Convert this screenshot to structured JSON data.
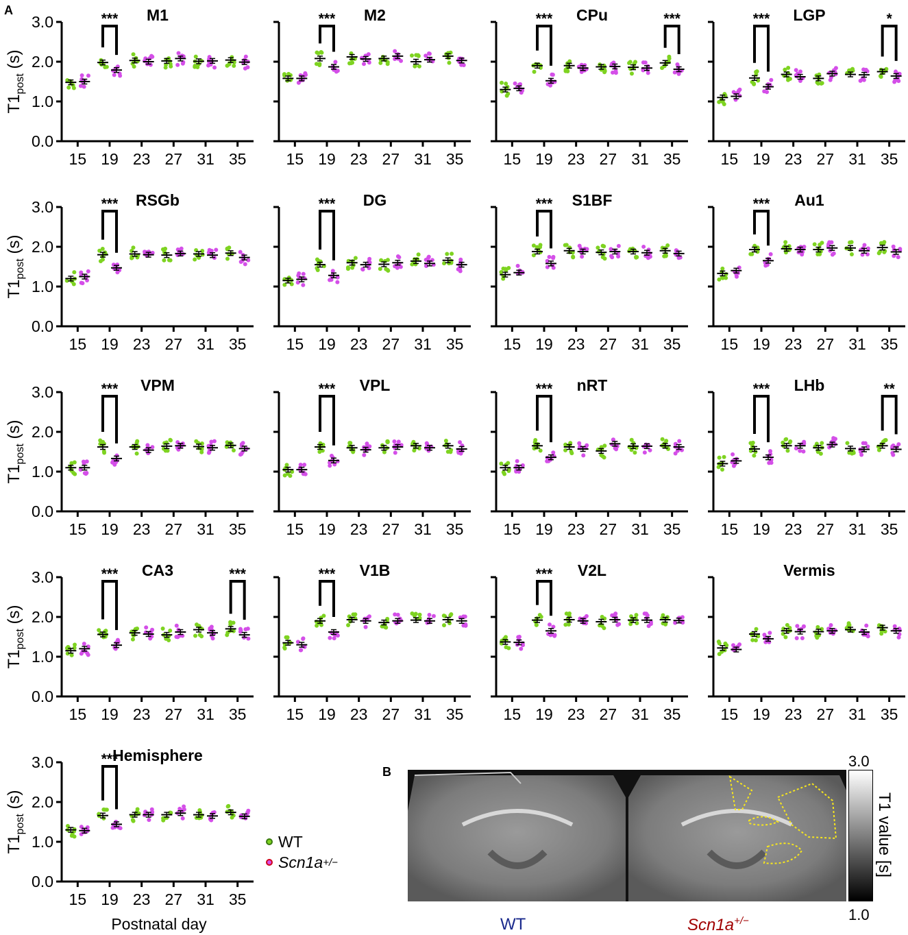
{
  "figure": {
    "panel_a_label": "A",
    "panel_b_label": "B",
    "y_axis_label": "T1",
    "y_axis_label_sub": "post",
    "y_axis_label_unit": " (s)",
    "x_axis_label": "Postnatal day",
    "colors": {
      "wt": "#7ed321",
      "mutant": "#d44fe8",
      "mutant_legend_edge": "#d0021b",
      "bar": "#000000"
    }
  },
  "legend": {
    "wt_label": "WT",
    "mutant_label": "Scn1a",
    "mutant_sup": "+/−"
  },
  "panel_b": {
    "colorbar_max": "3.0",
    "colorbar_min": "1.0",
    "colorbar_title": "T1 value [s]",
    "wt_caption": "WT",
    "mutant_caption": "Scn1a",
    "mutant_caption_sup": "+/−"
  },
  "chart_data": [
    {
      "type": "scatter",
      "title": "M1",
      "x": [
        15,
        19,
        23,
        27,
        31,
        35
      ],
      "ylim": [
        0,
        3
      ],
      "yticks": [
        "0.0",
        "1.0",
        "2.0",
        "3.0"
      ],
      "series": [
        {
          "name": "WT",
          "values": [
            1.48,
            1.98,
            2.03,
            2.02,
            2.01,
            2.04
          ]
        },
        {
          "name": "Scn1a+/−",
          "values": [
            1.5,
            1.79,
            2.0,
            2.08,
            2.02,
            1.99
          ]
        }
      ],
      "significance": [
        {
          "x": 19,
          "label": "***"
        }
      ]
    },
    {
      "type": "scatter",
      "title": "M2",
      "x": [
        15,
        19,
        23,
        27,
        31,
        35
      ],
      "ylim": [
        0,
        3
      ],
      "yticks": [
        "0.0",
        "1.0",
        "2.0",
        "3.0"
      ],
      "series": [
        {
          "name": "WT",
          "values": [
            1.58,
            2.08,
            2.12,
            2.08,
            2.0,
            2.14
          ]
        },
        {
          "name": "Scn1a+/−",
          "values": [
            1.58,
            1.87,
            2.07,
            2.14,
            2.05,
            2.03
          ]
        }
      ],
      "significance": [
        {
          "x": 19,
          "label": "***"
        }
      ]
    },
    {
      "type": "scatter",
      "title": "CPu",
      "x": [
        15,
        19,
        23,
        27,
        31,
        35
      ],
      "ylim": [
        0,
        3
      ],
      "yticks": [
        "0.0",
        "1.0",
        "2.0",
        "3.0"
      ],
      "series": [
        {
          "name": "WT",
          "values": [
            1.3,
            1.9,
            1.9,
            1.87,
            1.86,
            1.97
          ]
        },
        {
          "name": "Scn1a+/−",
          "values": [
            1.33,
            1.52,
            1.84,
            1.88,
            1.84,
            1.81
          ]
        }
      ],
      "significance": [
        {
          "x": 19,
          "label": "***"
        },
        {
          "x": 35,
          "label": "***"
        }
      ]
    },
    {
      "type": "scatter",
      "title": "LGP",
      "x": [
        15,
        19,
        23,
        27,
        31,
        35
      ],
      "ylim": [
        0,
        3
      ],
      "yticks": [
        "0.0",
        "1.0",
        "2.0",
        "3.0"
      ],
      "series": [
        {
          "name": "WT",
          "values": [
            1.1,
            1.59,
            1.68,
            1.58,
            1.68,
            1.75
          ]
        },
        {
          "name": "Scn1a+/−",
          "values": [
            1.13,
            1.37,
            1.62,
            1.7,
            1.67,
            1.64
          ]
        }
      ],
      "significance": [
        {
          "x": 19,
          "label": "***"
        },
        {
          "x": 35,
          "label": "*"
        }
      ]
    },
    {
      "type": "scatter",
      "title": "RSGb",
      "x": [
        15,
        19,
        23,
        27,
        31,
        35
      ],
      "ylim": [
        0,
        3
      ],
      "yticks": [
        "0.0",
        "1.0",
        "2.0",
        "3.0"
      ],
      "series": [
        {
          "name": "WT",
          "values": [
            1.2,
            1.8,
            1.82,
            1.79,
            1.82,
            1.84
          ]
        },
        {
          "name": "Scn1a+/−",
          "values": [
            1.25,
            1.47,
            1.8,
            1.83,
            1.79,
            1.73
          ]
        }
      ],
      "significance": [
        {
          "x": 19,
          "label": "***"
        }
      ]
    },
    {
      "type": "scatter",
      "title": "DG",
      "x": [
        15,
        19,
        23,
        27,
        31,
        35
      ],
      "ylim": [
        0,
        3
      ],
      "yticks": [
        "0.0",
        "1.0",
        "2.0",
        "3.0"
      ],
      "series": [
        {
          "name": "WT",
          "values": [
            1.15,
            1.55,
            1.6,
            1.56,
            1.64,
            1.66
          ]
        },
        {
          "name": "Scn1a+/−",
          "values": [
            1.18,
            1.28,
            1.55,
            1.6,
            1.58,
            1.55
          ]
        }
      ],
      "significance": [
        {
          "x": 19,
          "label": "***"
        }
      ]
    },
    {
      "type": "scatter",
      "title": "S1BF",
      "x": [
        15,
        19,
        23,
        27,
        31,
        35
      ],
      "ylim": [
        0,
        3
      ],
      "yticks": [
        "0.0",
        "1.0",
        "2.0",
        "3.0"
      ],
      "series": [
        {
          "name": "WT",
          "values": [
            1.3,
            1.88,
            1.9,
            1.86,
            1.88,
            1.9
          ]
        },
        {
          "name": "Scn1a+/−",
          "values": [
            1.35,
            1.58,
            1.88,
            1.88,
            1.85,
            1.83
          ]
        }
      ],
      "significance": [
        {
          "x": 19,
          "label": "***"
        }
      ]
    },
    {
      "type": "scatter",
      "title": "Au1",
      "x": [
        15,
        19,
        23,
        27,
        31,
        35
      ],
      "ylim": [
        0,
        3
      ],
      "yticks": [
        "0.0",
        "1.0",
        "2.0",
        "3.0"
      ],
      "series": [
        {
          "name": "WT",
          "values": [
            1.33,
            1.93,
            1.95,
            1.93,
            1.97,
            1.98
          ]
        },
        {
          "name": "Scn1a+/−",
          "values": [
            1.4,
            1.65,
            1.93,
            1.97,
            1.9,
            1.87
          ]
        }
      ],
      "significance": [
        {
          "x": 19,
          "label": "***"
        }
      ]
    },
    {
      "type": "scatter",
      "title": "VPM",
      "x": [
        15,
        19,
        23,
        27,
        31,
        35
      ],
      "ylim": [
        0,
        3
      ],
      "yticks": [
        "0.0",
        "1.0",
        "2.0",
        "3.0"
      ],
      "series": [
        {
          "name": "WT",
          "values": [
            1.1,
            1.62,
            1.62,
            1.64,
            1.63,
            1.66
          ]
        },
        {
          "name": "Scn1a+/−",
          "values": [
            1.1,
            1.33,
            1.54,
            1.65,
            1.6,
            1.58
          ]
        }
      ],
      "significance": [
        {
          "x": 19,
          "label": "***"
        }
      ]
    },
    {
      "type": "scatter",
      "title": "VPL",
      "x": [
        15,
        19,
        23,
        27,
        31,
        35
      ],
      "ylim": [
        0,
        3
      ],
      "yticks": [
        "0.0",
        "1.0",
        "2.0",
        "3.0"
      ],
      "series": [
        {
          "name": "WT",
          "values": [
            1.05,
            1.62,
            1.6,
            1.6,
            1.65,
            1.65
          ]
        },
        {
          "name": "Scn1a+/−",
          "values": [
            1.05,
            1.28,
            1.55,
            1.62,
            1.6,
            1.57
          ]
        }
      ],
      "significance": [
        {
          "x": 19,
          "label": "***"
        }
      ]
    },
    {
      "type": "scatter",
      "title": "nRT",
      "x": [
        15,
        19,
        23,
        27,
        31,
        35
      ],
      "ylim": [
        0,
        3
      ],
      "yticks": [
        "0.0",
        "1.0",
        "2.0",
        "3.0"
      ],
      "series": [
        {
          "name": "WT",
          "values": [
            1.1,
            1.65,
            1.62,
            1.52,
            1.64,
            1.65
          ]
        },
        {
          "name": "Scn1a+/−",
          "values": [
            1.1,
            1.36,
            1.57,
            1.7,
            1.64,
            1.62
          ]
        }
      ],
      "significance": [
        {
          "x": 19,
          "label": "***"
        }
      ]
    },
    {
      "type": "scatter",
      "title": "LHb",
      "x": [
        15,
        19,
        23,
        27,
        31,
        35
      ],
      "ylim": [
        0,
        3
      ],
      "yticks": [
        "0.0",
        "1.0",
        "2.0",
        "3.0"
      ],
      "series": [
        {
          "name": "WT",
          "values": [
            1.2,
            1.57,
            1.65,
            1.6,
            1.58,
            1.65
          ]
        },
        {
          "name": "Scn1a+/−",
          "values": [
            1.27,
            1.36,
            1.65,
            1.68,
            1.56,
            1.56
          ]
        }
      ],
      "significance": [
        {
          "x": 19,
          "label": "***"
        },
        {
          "x": 35,
          "label": "**"
        }
      ]
    },
    {
      "type": "scatter",
      "title": "CA3",
      "x": [
        15,
        19,
        23,
        27,
        31,
        35
      ],
      "ylim": [
        0,
        3
      ],
      "yticks": [
        "0.0",
        "1.0",
        "2.0",
        "3.0"
      ],
      "series": [
        {
          "name": "WT",
          "values": [
            1.15,
            1.56,
            1.6,
            1.55,
            1.68,
            1.7
          ]
        },
        {
          "name": "Scn1a+/−",
          "values": [
            1.2,
            1.29,
            1.57,
            1.62,
            1.6,
            1.55
          ]
        }
      ],
      "significance": [
        {
          "x": 19,
          "label": "***"
        },
        {
          "x": 35,
          "label": "***"
        }
      ]
    },
    {
      "type": "scatter",
      "title": "V1B",
      "x": [
        15,
        19,
        23,
        27,
        31,
        35
      ],
      "ylim": [
        0,
        3
      ],
      "yticks": [
        "0.0",
        "1.0",
        "2.0",
        "3.0"
      ],
      "series": [
        {
          "name": "WT",
          "values": [
            1.35,
            1.9,
            1.93,
            1.86,
            1.92,
            1.93
          ]
        },
        {
          "name": "Scn1a+/−",
          "values": [
            1.3,
            1.62,
            1.9,
            1.9,
            1.9,
            1.9
          ]
        }
      ],
      "significance": [
        {
          "x": 19,
          "label": "***"
        }
      ]
    },
    {
      "type": "scatter",
      "title": "V2L",
      "x": [
        15,
        19,
        23,
        27,
        31,
        35
      ],
      "ylim": [
        0,
        3
      ],
      "yticks": [
        "0.0",
        "1.0",
        "2.0",
        "3.0"
      ],
      "series": [
        {
          "name": "WT",
          "values": [
            1.37,
            1.92,
            1.93,
            1.88,
            1.92,
            1.93
          ]
        },
        {
          "name": "Scn1a+/−",
          "values": [
            1.36,
            1.65,
            1.9,
            1.93,
            1.92,
            1.91
          ]
        }
      ],
      "significance": [
        {
          "x": 19,
          "label": "***"
        }
      ]
    },
    {
      "type": "scatter",
      "title": "Vermis",
      "x": [
        15,
        19,
        23,
        27,
        31,
        35
      ],
      "ylim": [
        0,
        3
      ],
      "yticks": [
        "0.0",
        "1.0",
        "2.0",
        "3.0"
      ],
      "series": [
        {
          "name": "WT",
          "values": [
            1.22,
            1.57,
            1.65,
            1.63,
            1.68,
            1.73
          ]
        },
        {
          "name": "Scn1a+/−",
          "values": [
            1.18,
            1.45,
            1.63,
            1.65,
            1.62,
            1.65
          ]
        }
      ],
      "significance": []
    },
    {
      "type": "scatter",
      "title": "Hemisphere",
      "x": [
        15,
        19,
        23,
        27,
        31,
        35
      ],
      "ylim": [
        0,
        3
      ],
      "yticks": [
        "0.0",
        "1.0",
        "2.0",
        "3.0"
      ],
      "series": [
        {
          "name": "WT",
          "values": [
            1.3,
            1.66,
            1.68,
            1.68,
            1.68,
            1.74
          ]
        },
        {
          "name": "Scn1a+/−",
          "values": [
            1.28,
            1.44,
            1.68,
            1.72,
            1.65,
            1.64
          ]
        }
      ],
      "significance": [
        {
          "x": 19,
          "label": "***"
        }
      ]
    }
  ]
}
